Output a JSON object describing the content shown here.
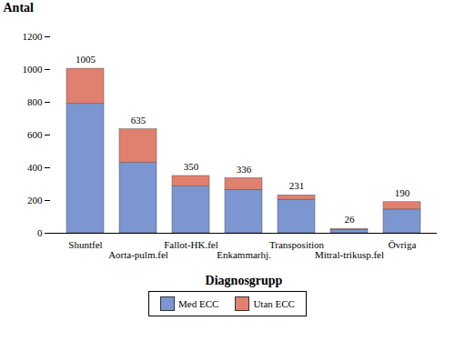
{
  "chart_data": {
    "type": "bar",
    "stacked": true,
    "categories": [
      "Shuntfel",
      "Aorta-pulm.fel",
      "Fallot-HK.fel",
      "Enkammarhj.",
      "Transposition",
      "Mitral-trikusp.fel",
      "Övriga"
    ],
    "series": [
      {
        "name": "Med ECC",
        "color": "#7b96d0",
        "values": [
          790,
          430,
          285,
          265,
          205,
          20,
          145
        ]
      },
      {
        "name": "Utan ECC",
        "color": "#e0806e",
        "values": [
          215,
          205,
          65,
          71,
          26,
          6,
          45
        ]
      }
    ],
    "totals": [
      1005,
      635,
      350,
      336,
      231,
      26,
      190
    ],
    "x_label": "Diagnosgrupp",
    "y_label": "Antal",
    "ylim": [
      0,
      1200
    ],
    "yticks": [
      0,
      200,
      400,
      600,
      800,
      1000,
      1200
    ],
    "grid": false,
    "legend": "bottom"
  }
}
